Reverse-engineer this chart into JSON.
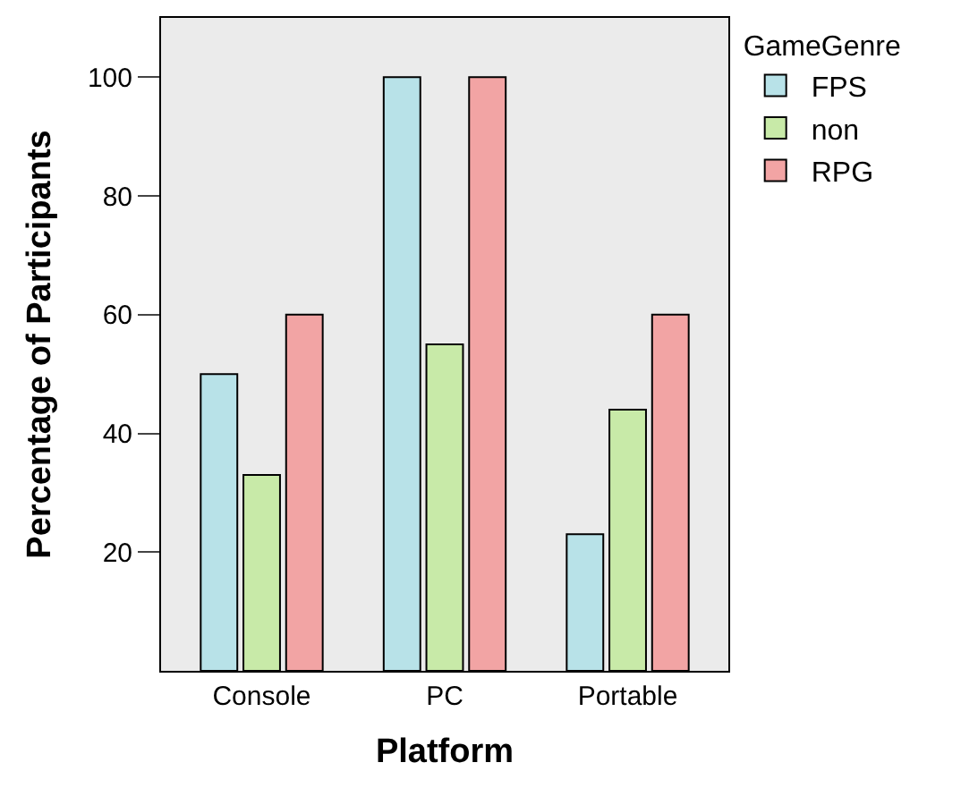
{
  "chart_data": {
    "type": "bar",
    "xlabel": "Platform",
    "ylabel": "Percentage of Participants",
    "legend_title": "GameGenre",
    "categories": [
      "Console",
      "PC",
      "Portable"
    ],
    "series": [
      {
        "name": "FPS",
        "color": "#b8e2e8",
        "values": [
          50,
          100,
          23
        ]
      },
      {
        "name": "non",
        "color": "#c8eaa8",
        "values": [
          33,
          55,
          44
        ]
      },
      {
        "name": "RPG",
        "color": "#f2a4a4",
        "values": [
          60,
          100,
          60
        ]
      }
    ],
    "ylim": [
      0,
      110
    ],
    "yticks": [
      20,
      40,
      60,
      80,
      100
    ],
    "grid": false,
    "legend": "top right"
  }
}
